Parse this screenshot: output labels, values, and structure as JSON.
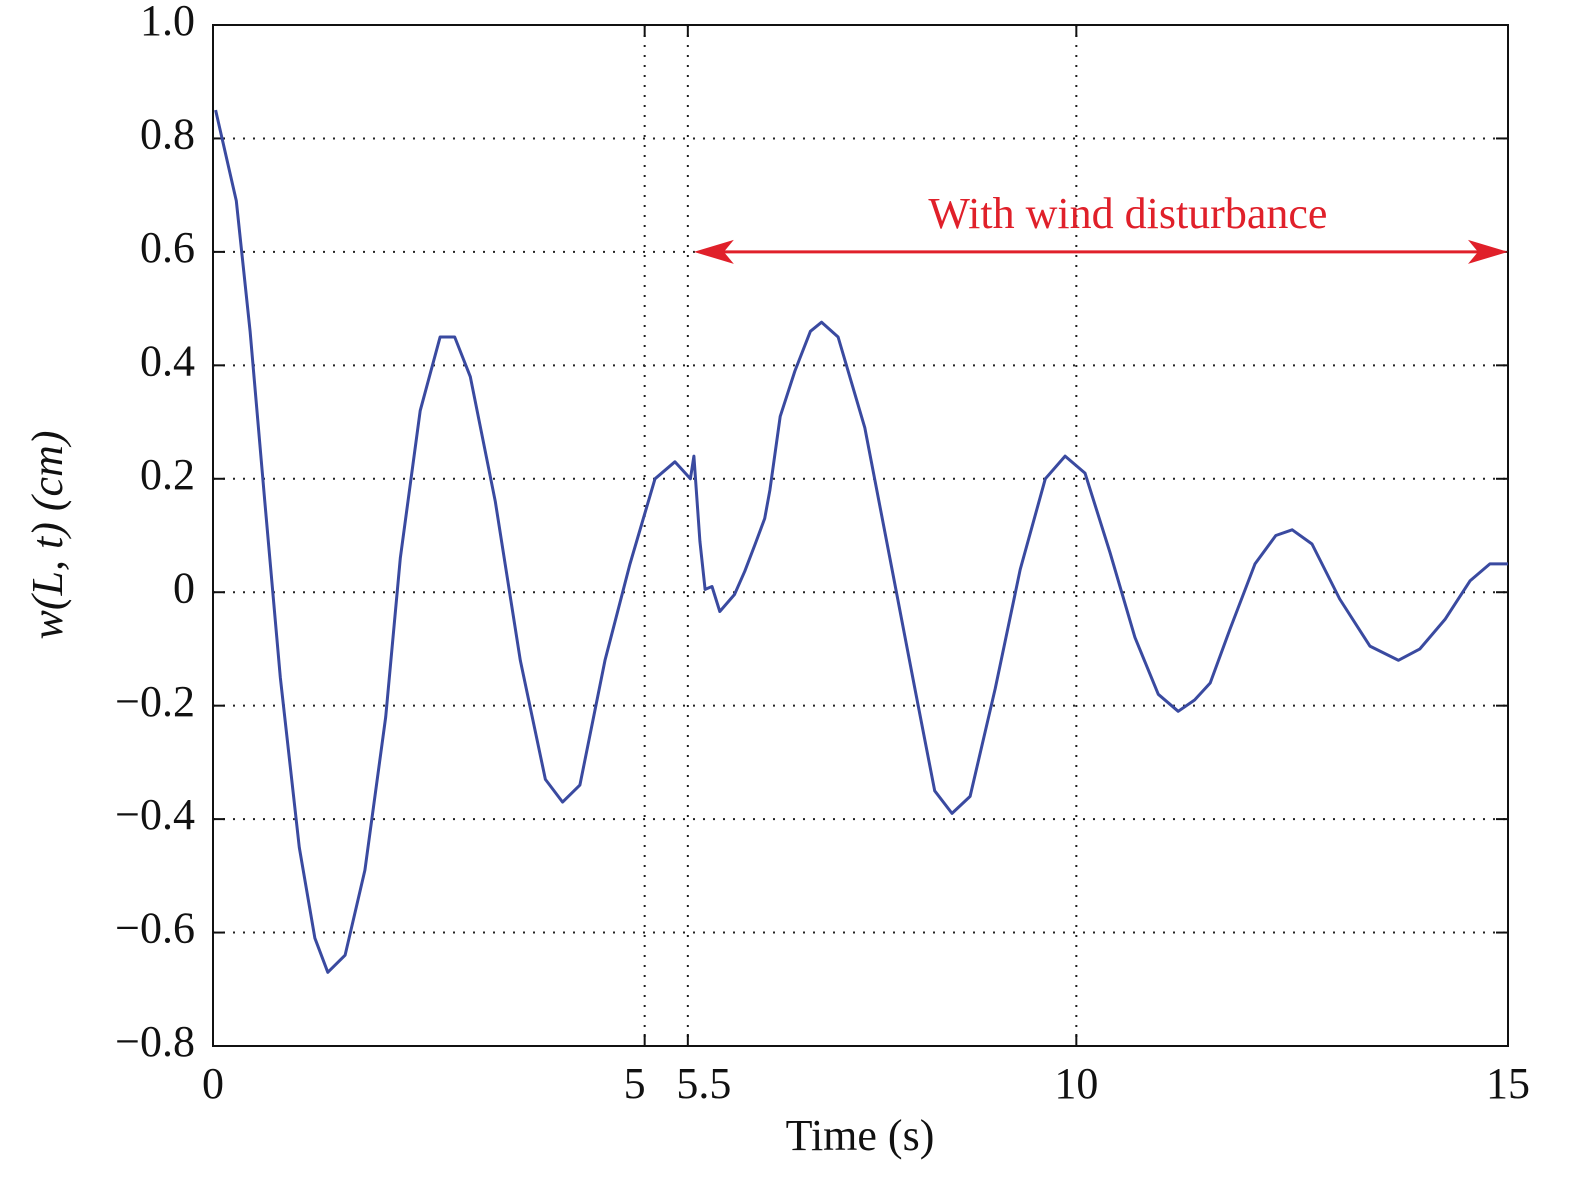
{
  "chart_data": {
    "type": "line",
    "xlabel": "Time (s)",
    "ylabel": "w(L, t) (cm)",
    "x": [
      0.03,
      0.27,
      0.43,
      0.6,
      0.78,
      1.0,
      1.18,
      1.33,
      1.53,
      1.76,
      2.0,
      2.17,
      2.4,
      2.63,
      2.8,
      2.98,
      3.27,
      3.56,
      3.85,
      4.05,
      4.25,
      4.54,
      4.83,
      5.12,
      5.35,
      5.53,
      5.57,
      5.64,
      5.7,
      5.78,
      5.87,
      6.04,
      6.16,
      6.28,
      6.39,
      6.45,
      6.57,
      6.74,
      6.92,
      7.05,
      7.24,
      7.55,
      7.84,
      8.13,
      8.36,
      8.56,
      8.77,
      9.06,
      9.35,
      9.64,
      9.87,
      10.1,
      10.39,
      10.68,
      10.95,
      11.18,
      11.37,
      11.55,
      11.78,
      12.07,
      12.31,
      12.5,
      12.73,
      13.05,
      13.4,
      13.73,
      13.98,
      14.27,
      14.56,
      14.79,
      15
    ],
    "series": [
      {
        "color": "#3a4aa0",
        "values": [
          0.85,
          0.69,
          0.46,
          0.16,
          -0.15,
          -0.45,
          -0.61,
          -0.67,
          -0.64,
          -0.49,
          -0.22,
          0.06,
          0.32,
          0.45,
          0.45,
          0.38,
          0.16,
          -0.12,
          -0.33,
          -0.37,
          -0.34,
          -0.12,
          0.05,
          0.2,
          0.23,
          0.2,
          0.24,
          0.09,
          0.005,
          0.01,
          -0.034,
          -0.004,
          0.037,
          0.085,
          0.13,
          0.18,
          0.31,
          0.39,
          0.46,
          0.476,
          0.45,
          0.29,
          0.06,
          -0.17,
          -0.35,
          -0.39,
          -0.36,
          -0.17,
          0.04,
          0.2,
          0.24,
          0.21,
          0.07,
          -0.08,
          -0.18,
          -0.21,
          -0.19,
          -0.16,
          -0.065,
          0.05,
          0.1,
          0.11,
          0.085,
          -0.012,
          -0.095,
          -0.12,
          -0.1,
          -0.048,
          0.02,
          0.05,
          0.05
        ]
      }
    ],
    "xlim": [
      0,
      15
    ],
    "xticks": [
      0,
      5,
      5.5,
      10,
      15
    ],
    "ylim": [
      -0.8,
      1
    ],
    "yticks": [
      {
        "value": -0.8,
        "label": "−0.8"
      },
      {
        "value": -0.6,
        "label": "−0.6"
      },
      {
        "value": -0.4,
        "label": "−0.4"
      },
      {
        "value": -0.2,
        "label": "−0.2"
      },
      0,
      0.2,
      0.4,
      0.6,
      0.8,
      {
        "value": 1,
        "label": "1.0"
      }
    ],
    "grid": true,
    "annotation": {
      "text": "With wind disturbance",
      "x": [
        5.5,
        15
      ],
      "y": 0.6,
      "color": "#e0202a"
    }
  }
}
